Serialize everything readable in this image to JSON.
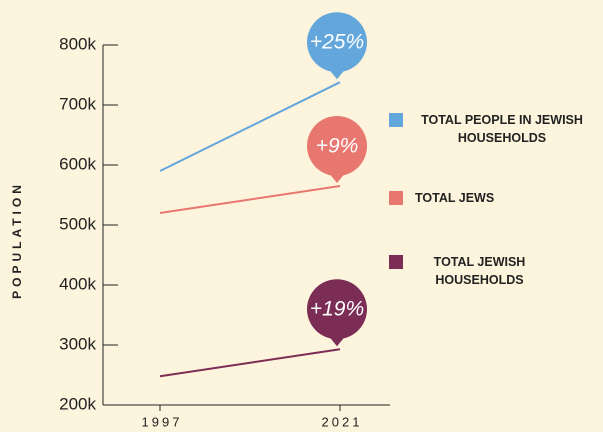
{
  "chart_data": {
    "type": "line",
    "ylabel": "POPULATION",
    "categories": [
      "1997",
      "2021"
    ],
    "series": [
      {
        "name": "TOTAL PEOPLE IN JEWISH HOUSEHOLDS",
        "color": "#62a6dc",
        "values": [
          590000,
          738000
        ],
        "annotation": "+25%"
      },
      {
        "name": "TOTAL JEWS",
        "color": "#e8776f",
        "values": [
          520000,
          565000
        ],
        "annotation": "+9%"
      },
      {
        "name": "TOTAL JEWISH HOUSEHOLDS",
        "color": "#7b2d55",
        "values": [
          248000,
          293000
        ],
        "annotation": "+19%"
      }
    ],
    "ylim": [
      200000,
      800000
    ],
    "yticks": [
      {
        "value": 200000,
        "label": "200k"
      },
      {
        "value": 300000,
        "label": "300k"
      },
      {
        "value": 400000,
        "label": "400k"
      },
      {
        "value": 500000,
        "label": "500k"
      },
      {
        "value": 600000,
        "label": "600k"
      },
      {
        "value": 700000,
        "label": "700k"
      },
      {
        "value": 800000,
        "label": "800k"
      }
    ],
    "legend": "right"
  }
}
